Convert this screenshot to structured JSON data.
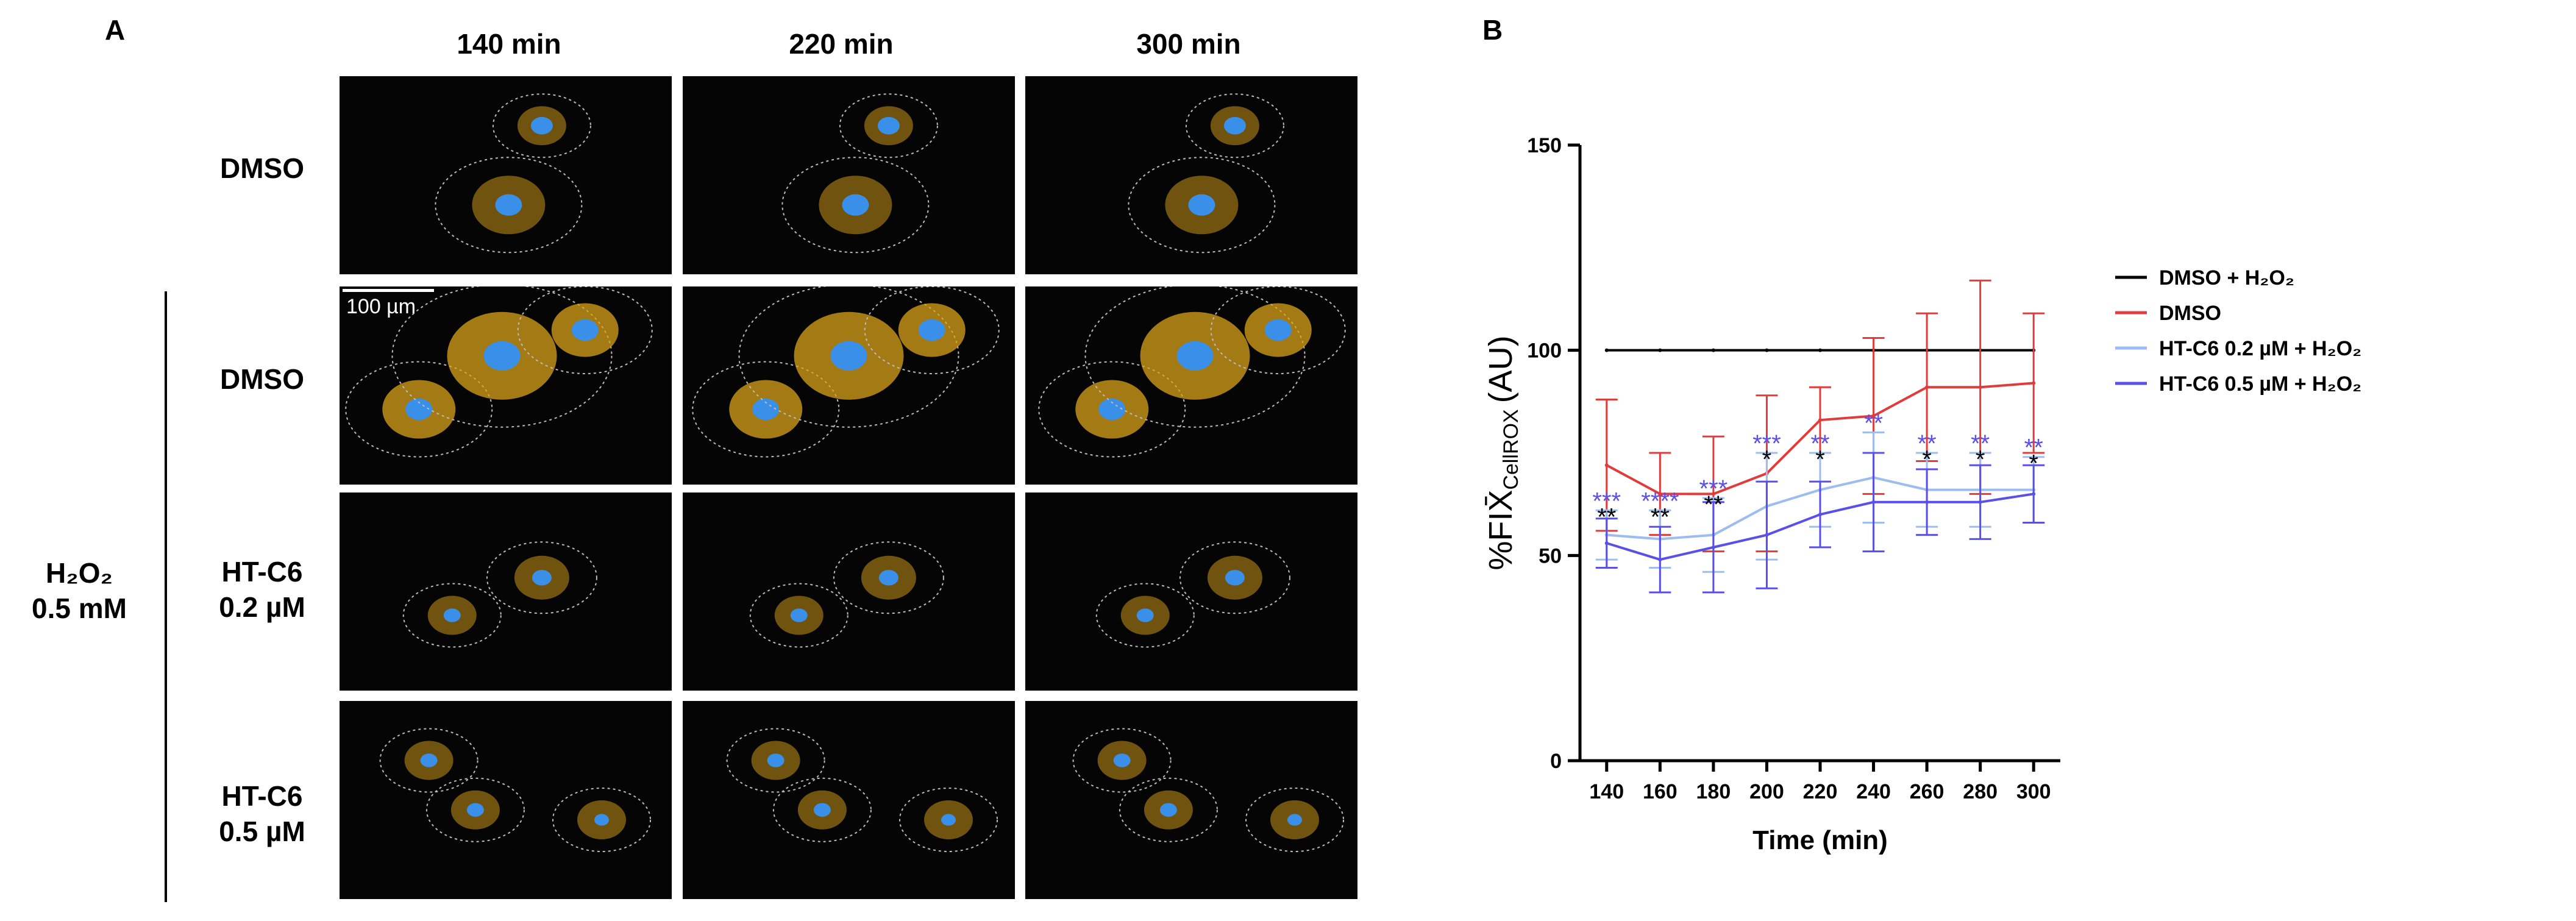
{
  "panel_a": {
    "letter": "A",
    "columns": [
      "140 min",
      "220 min",
      "300 min"
    ],
    "rows": [
      {
        "lines": [
          "DMSO"
        ]
      },
      {
        "lines": [
          "DMSO"
        ]
      },
      {
        "lines": [
          "HT-C6",
          "0.2 µM"
        ]
      },
      {
        "lines": [
          "HT-C6",
          "0.5 µM"
        ]
      }
    ],
    "group_label": [
      "H₂O₂",
      "0.5 mM"
    ],
    "scale_bar": "100 µm"
  },
  "panel_b": {
    "letter": "B"
  },
  "chart_data": {
    "type": "line",
    "xlabel": "Time (min)",
    "ylabel": "%FIX̄CellROX (AU)",
    "ylabel_main": "%FIX̄",
    "ylabel_sub": "CellROX",
    "ylabel_unit": "(AU)",
    "x": [
      140,
      160,
      180,
      200,
      220,
      240,
      260,
      280,
      300
    ],
    "xlim": [
      130,
      310
    ],
    "ylim": [
      0,
      150
    ],
    "yticks": [
      0,
      50,
      100,
      150
    ],
    "legend_position": "right",
    "series": [
      {
        "name": "DMSO + H₂O₂",
        "color": "#000000",
        "values": [
          100,
          100,
          100,
          100,
          100,
          100,
          100,
          100,
          100
        ],
        "errors": [
          0,
          0,
          0,
          0,
          0,
          0,
          0,
          0,
          0
        ]
      },
      {
        "name": "DMSO",
        "color": "#e03c3c",
        "values": [
          72,
          65,
          65,
          70,
          83,
          84,
          91,
          91,
          92
        ],
        "errors": [
          16,
          10,
          14,
          19,
          8,
          19,
          18,
          26,
          17
        ]
      },
      {
        "name": "HT-C6 0.2 µM + H₂O₂",
        "color": "#9dbcf0",
        "values": [
          55,
          54,
          55,
          62,
          66,
          69,
          66,
          66,
          66
        ],
        "errors": [
          6,
          7,
          9,
          13,
          9,
          11,
          9,
          9,
          8
        ]
      },
      {
        "name": "HT-C6 0.5 µM + H₂O₂",
        "color": "#5a50e8",
        "values": [
          53,
          49,
          52,
          55,
          60,
          63,
          63,
          63,
          65
        ],
        "errors": [
          6,
          8,
          11,
          13,
          8,
          12,
          8,
          9,
          7
        ]
      }
    ],
    "annotations": [
      {
        "x": 140,
        "blue": "***",
        "black": "**"
      },
      {
        "x": 160,
        "blue": "****",
        "black": "**"
      },
      {
        "x": 180,
        "blue": "***",
        "black": "**"
      },
      {
        "x": 200,
        "blue": "***",
        "black": "*"
      },
      {
        "x": 220,
        "blue": "**",
        "black": "*"
      },
      {
        "x": 240,
        "blue": "**",
        "black": ""
      },
      {
        "x": 260,
        "blue": "**",
        "black": "*"
      },
      {
        "x": 280,
        "blue": "**",
        "black": "*"
      },
      {
        "x": 300,
        "blue": "**",
        "black": "*"
      }
    ],
    "colors": {
      "annotation_blue": "#5a50e8",
      "annotation_black": "#000000",
      "nucleus": "#3a8fe8",
      "cytoplasm": "#d9a21a",
      "outline": "#bcbcbc"
    }
  }
}
